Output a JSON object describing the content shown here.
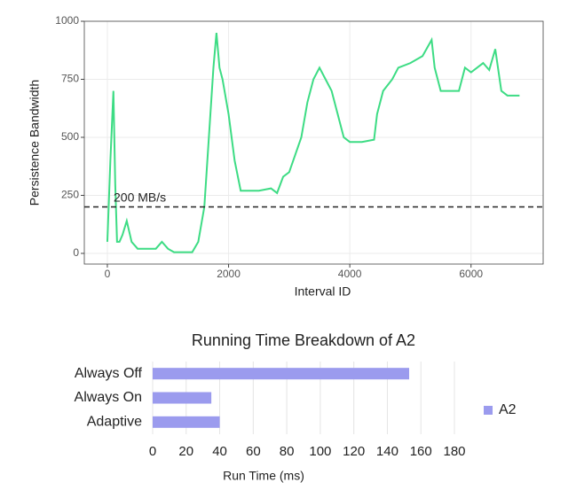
{
  "chart_data": [
    {
      "type": "line",
      "xlabel": "Interval ID",
      "ylabel": "Persistence Bandwidth",
      "x": [
        0,
        50,
        100,
        130,
        160,
        200,
        250,
        320,
        400,
        500,
        800,
        900,
        1000,
        1100,
        1400,
        1500,
        1600,
        1700,
        1750,
        1800,
        1850,
        1900,
        2000,
        2100,
        2200,
        2500,
        2700,
        2800,
        2900,
        3000,
        3200,
        3300,
        3400,
        3500,
        3600,
        3700,
        3800,
        3900,
        4000,
        4200,
        4400,
        4450,
        4550,
        4700,
        4800,
        5000,
        5200,
        5350,
        5400,
        5500,
        5800,
        5900,
        6000,
        6200,
        6300,
        6400,
        6500,
        6600,
        6800
      ],
      "values": [
        50,
        400,
        700,
        300,
        50,
        50,
        80,
        140,
        50,
        20,
        20,
        50,
        20,
        5,
        5,
        50,
        200,
        600,
        800,
        950,
        800,
        750,
        600,
        400,
        270,
        270,
        280,
        260,
        330,
        350,
        500,
        650,
        750,
        800,
        750,
        700,
        600,
        500,
        480,
        480,
        490,
        600,
        700,
        750,
        800,
        820,
        850,
        920,
        800,
        700,
        700,
        800,
        780,
        820,
        790,
        880,
        700,
        680,
        680
      ],
      "color": "#3ddc84",
      "xlim": [
        -380,
        7190
      ],
      "ylim": [
        -46,
        1000
      ],
      "xticks": [
        0,
        2000,
        4000,
        6000
      ],
      "yticks": [
        0,
        250,
        500,
        750,
        1000
      ],
      "grid": true,
      "reference_line": {
        "value": 200,
        "label": "200 MB/s"
      }
    },
    {
      "type": "hbar",
      "title": "Running Time Breakdown of A2",
      "xlabel": "Run Time (ms)",
      "categories": [
        "Always Off",
        "Always On",
        "Adaptive"
      ],
      "series": [
        {
          "name": "A2",
          "color": "#9b9bee",
          "values": [
            153,
            35,
            40
          ]
        }
      ],
      "xlim": [
        0,
        180
      ],
      "xticks": [
        0,
        20,
        40,
        60,
        80,
        100,
        120,
        140,
        160,
        180
      ],
      "grid": true,
      "legend": "right"
    }
  ]
}
